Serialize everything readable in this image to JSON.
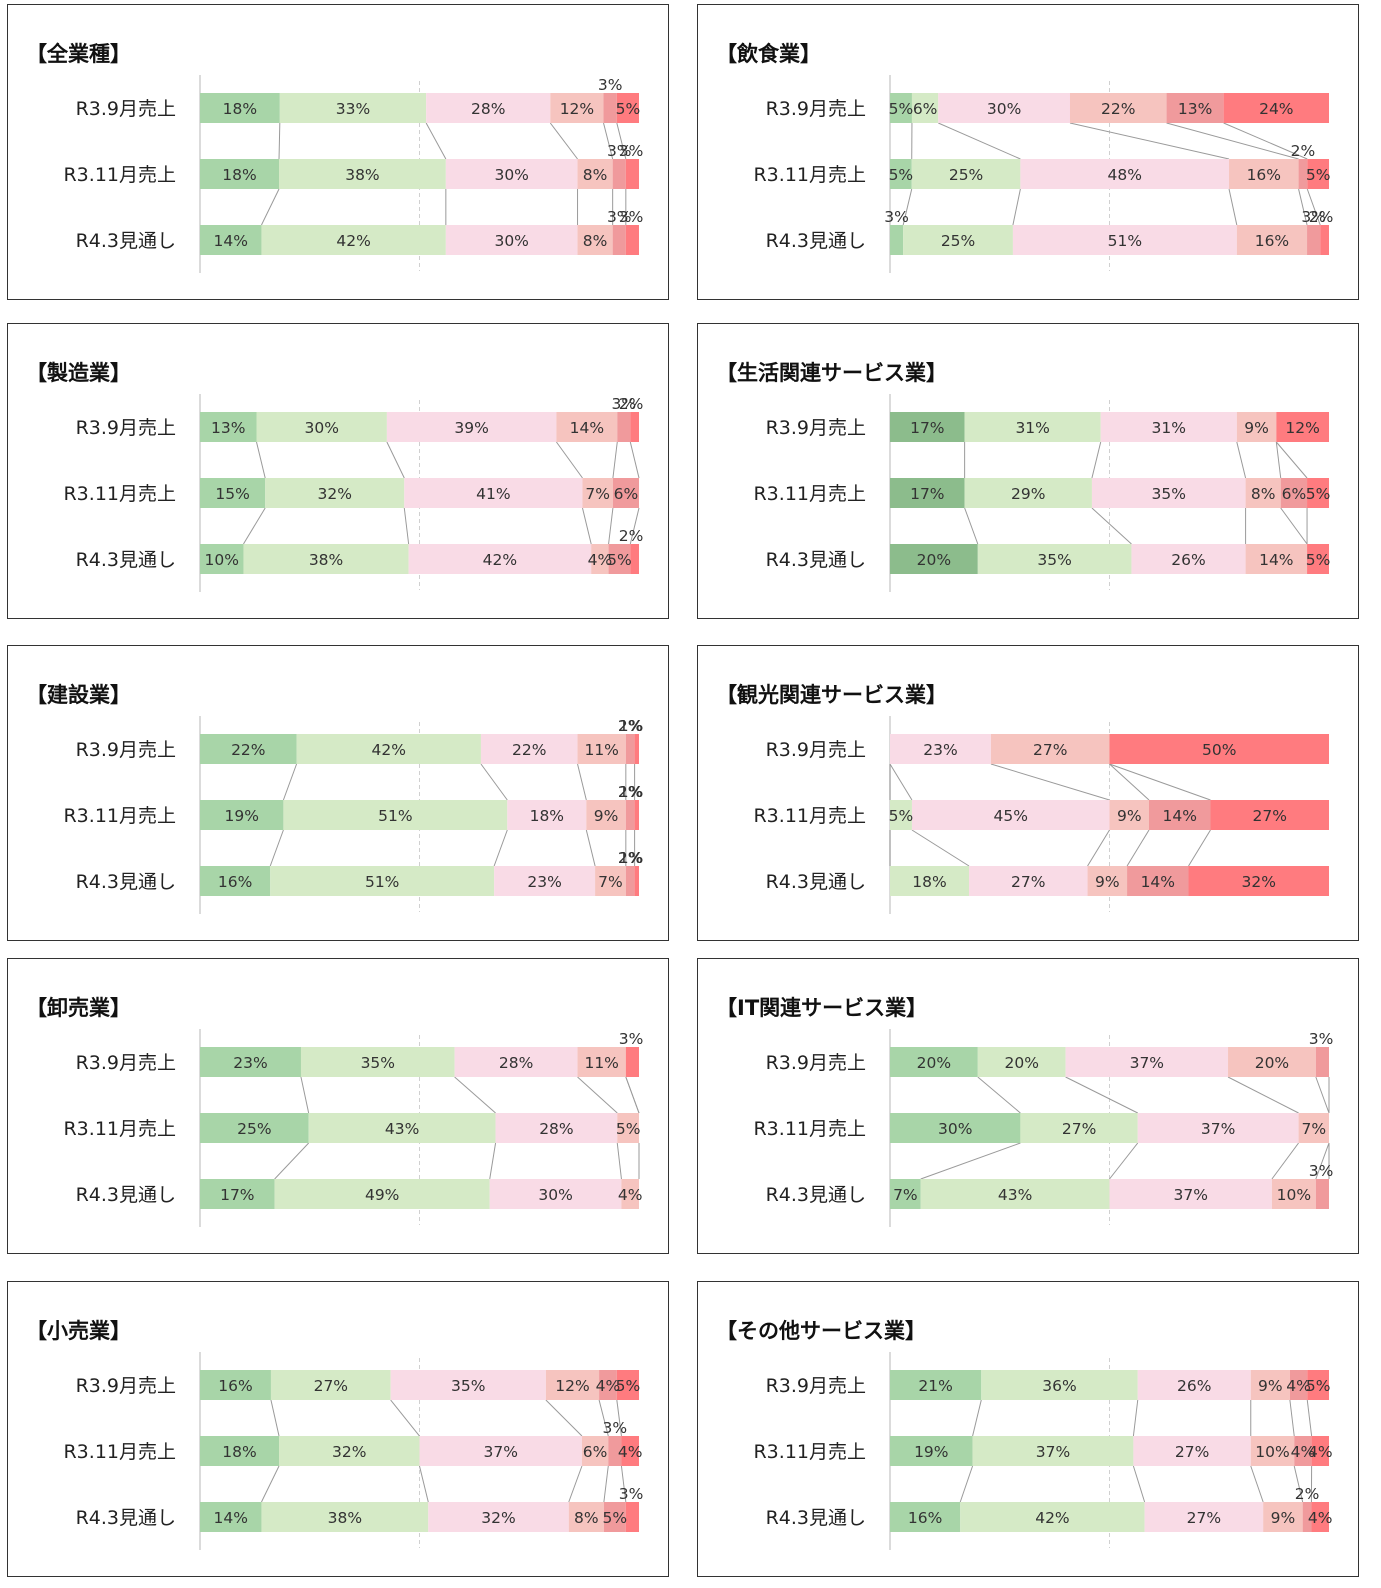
{
  "colors": [
    "#a8d5a8",
    "#d5eac6",
    "#f9dbe6",
    "#f6c4bf",
    "#f09a9c",
    "#ff7b7f"
  ],
  "chart_data": [
    {
      "type": "bar",
      "stacked": "100%",
      "orientation": "horizontal",
      "title": "【全業種】",
      "categories": [
        "R3.9月売上",
        "R3.11月売上",
        "R4.3見通し"
      ],
      "rows": [
        {
          "values": [
            18,
            33,
            28,
            12,
            3,
            5
          ],
          "labels": [
            "18%",
            "33%",
            "28%",
            "12%",
            "3%",
            "5%"
          ]
        },
        {
          "values": [
            18,
            38,
            30,
            8,
            3,
            3
          ],
          "labels": [
            "18%",
            "38%",
            "30%",
            "8%",
            "3%",
            "3%"
          ]
        },
        {
          "values": [
            14,
            42,
            30,
            8,
            3,
            3
          ],
          "labels": [
            "14%",
            "42%",
            "30%",
            "8%",
            "3%",
            "3%"
          ]
        }
      ]
    },
    {
      "type": "bar",
      "stacked": "100%",
      "orientation": "horizontal",
      "title": "【飲食業】",
      "categories": [
        "R3.9月売上",
        "R3.11月売上",
        "R4.3見通し"
      ],
      "rows": [
        {
          "values": [
            5,
            6,
            30,
            22,
            13,
            24
          ],
          "labels": [
            "5%",
            "6%",
            "30%",
            "22%",
            "13%",
            "24%"
          ]
        },
        {
          "values": [
            5,
            25,
            48,
            16,
            2,
            5
          ],
          "labels": [
            "5%",
            "25%",
            "48%",
            "16%",
            "2%",
            "5%"
          ]
        },
        {
          "values": [
            3,
            25,
            51,
            16,
            3,
            2
          ],
          "labels": [
            "3%",
            "25%",
            "51%",
            "16%",
            "3%",
            "2%"
          ]
        }
      ]
    },
    {
      "type": "bar",
      "stacked": "100%",
      "orientation": "horizontal",
      "title": "【製造業】",
      "categories": [
        "R3.9月売上",
        "R3.11月売上",
        "R4.3見通し"
      ],
      "rows": [
        {
          "values": [
            13,
            30,
            39,
            14,
            3,
            2
          ],
          "labels": [
            "13%",
            "30%",
            "39%",
            "14%",
            "3%",
            "2%"
          ]
        },
        {
          "values": [
            15,
            32,
            41,
            7,
            6,
            0
          ],
          "labels": [
            "15%",
            "32%",
            "41%",
            "7%",
            "6%",
            ""
          ]
        },
        {
          "values": [
            10,
            38,
            42,
            4,
            5,
            2
          ],
          "labels": [
            "10%",
            "38%",
            "42%",
            "4%",
            "5%",
            "2%"
          ]
        }
      ]
    },
    {
      "type": "bar",
      "stacked": "100%",
      "orientation": "horizontal",
      "title": "【生活関連サービス業】",
      "categories": [
        "R3.9月売上",
        "R3.11月売上",
        "R4.3見通し"
      ],
      "rows": [
        {
          "values": [
            17,
            31,
            31,
            9,
            0,
            12
          ],
          "labels": [
            "17%",
            "31%",
            "31%",
            "9%",
            "",
            "12%"
          ]
        },
        {
          "values": [
            17,
            29,
            35,
            8,
            6,
            5
          ],
          "labels": [
            "17%",
            "29%",
            "35%",
            "8%",
            "6%",
            "5%"
          ]
        },
        {
          "values": [
            20,
            35,
            26,
            14,
            0,
            5
          ],
          "labels": [
            "20%",
            "35%",
            "26%",
            "14%",
            "",
            "5%"
          ]
        }
      ]
    },
    {
      "type": "bar",
      "stacked": "100%",
      "orientation": "horizontal",
      "title": "【建設業】",
      "categories": [
        "R3.9月売上",
        "R3.11月売上",
        "R4.3見通し"
      ],
      "rows": [
        {
          "values": [
            22,
            42,
            22,
            11,
            2,
            1
          ],
          "labels": [
            "22%",
            "42%",
            "22%",
            "11%",
            "2%",
            "1%"
          ]
        },
        {
          "values": [
            19,
            51,
            18,
            9,
            2,
            1
          ],
          "labels": [
            "19%",
            "51%",
            "18%",
            "9%",
            "2%",
            "1%"
          ]
        },
        {
          "values": [
            16,
            51,
            23,
            7,
            2,
            1
          ],
          "labels": [
            "16%",
            "51%",
            "23%",
            "7%",
            "2%",
            "1%"
          ]
        }
      ]
    },
    {
      "type": "bar",
      "stacked": "100%",
      "orientation": "horizontal",
      "title": "【観光関連サービス業】",
      "categories": [
        "R3.9月売上",
        "R3.11月売上",
        "R4.3見通し"
      ],
      "rows": [
        {
          "values": [
            0,
            0,
            23,
            27,
            0,
            50
          ],
          "labels": [
            "",
            "",
            "23%",
            "27%",
            "",
            "50%"
          ]
        },
        {
          "values": [
            0,
            5,
            45,
            9,
            14,
            27
          ],
          "labels": [
            "",
            "5%",
            "45%",
            "9%",
            "14%",
            "27%"
          ]
        },
        {
          "values": [
            0,
            18,
            27,
            9,
            14,
            32
          ],
          "labels": [
            "",
            "18%",
            "27%",
            "9%",
            "14%",
            "32%"
          ]
        }
      ]
    },
    {
      "type": "bar",
      "stacked": "100%",
      "orientation": "horizontal",
      "title": "【卸売業】",
      "categories": [
        "R3.9月売上",
        "R3.11月売上",
        "R4.3見通し"
      ],
      "rows": [
        {
          "values": [
            23,
            35,
            28,
            11,
            0,
            3
          ],
          "labels": [
            "23%",
            "35%",
            "28%",
            "11%",
            "",
            "3%"
          ]
        },
        {
          "values": [
            25,
            43,
            28,
            5,
            0,
            0
          ],
          "labels": [
            "25%",
            "43%",
            "28%",
            "5%",
            "",
            ""
          ]
        },
        {
          "values": [
            17,
            49,
            30,
            4,
            0,
            0
          ],
          "labels": [
            "17%",
            "49%",
            "30%",
            "4%",
            "",
            ""
          ]
        }
      ]
    },
    {
      "type": "bar",
      "stacked": "100%",
      "orientation": "horizontal",
      "title": "【IT関連サービス業】",
      "categories": [
        "R3.9月売上",
        "R3.11月売上",
        "R4.3見通し"
      ],
      "rows": [
        {
          "values": [
            20,
            20,
            37,
            20,
            3,
            0
          ],
          "labels": [
            "20%",
            "20%",
            "37%",
            "20%",
            "3%",
            ""
          ]
        },
        {
          "values": [
            30,
            27,
            37,
            7,
            0,
            0
          ],
          "labels": [
            "30%",
            "27%",
            "37%",
            "7%",
            "",
            ""
          ]
        },
        {
          "values": [
            7,
            43,
            37,
            10,
            3,
            0
          ],
          "labels": [
            "7%",
            "43%",
            "37%",
            "10%",
            "3%",
            ""
          ]
        }
      ]
    },
    {
      "type": "bar",
      "stacked": "100%",
      "orientation": "horizontal",
      "title": "【小売業】",
      "categories": [
        "R3.9月売上",
        "R3.11月売上",
        "R4.3見通し"
      ],
      "rows": [
        {
          "values": [
            16,
            27,
            35,
            12,
            4,
            5
          ],
          "labels": [
            "16%",
            "27%",
            "35%",
            "12%",
            "4%",
            "5%"
          ]
        },
        {
          "values": [
            18,
            32,
            37,
            6,
            3,
            4
          ],
          "labels": [
            "18%",
            "32%",
            "37%",
            "6%",
            "3%",
            "4%"
          ]
        },
        {
          "values": [
            14,
            38,
            32,
            8,
            5,
            3
          ],
          "labels": [
            "14%",
            "38%",
            "32%",
            "8%",
            "5%",
            "3%"
          ]
        }
      ]
    },
    {
      "type": "bar",
      "stacked": "100%",
      "orientation": "horizontal",
      "title": "【その他サービス業】",
      "categories": [
        "R3.9月売上",
        "R3.11月売上",
        "R4.3見通し"
      ],
      "rows": [
        {
          "values": [
            21,
            36,
            26,
            9,
            4,
            5
          ],
          "labels": [
            "21%",
            "36%",
            "26%",
            "9%",
            "4%",
            "5%"
          ]
        },
        {
          "values": [
            19,
            37,
            27,
            10,
            4,
            4
          ],
          "labels": [
            "19%",
            "37%",
            "27%",
            "10%",
            "4%",
            "4%"
          ]
        },
        {
          "values": [
            16,
            42,
            27,
            9,
            2,
            4
          ],
          "labels": [
            "16%",
            "42%",
            "27%",
            "9%",
            "2%",
            "4%"
          ]
        }
      ]
    }
  ]
}
